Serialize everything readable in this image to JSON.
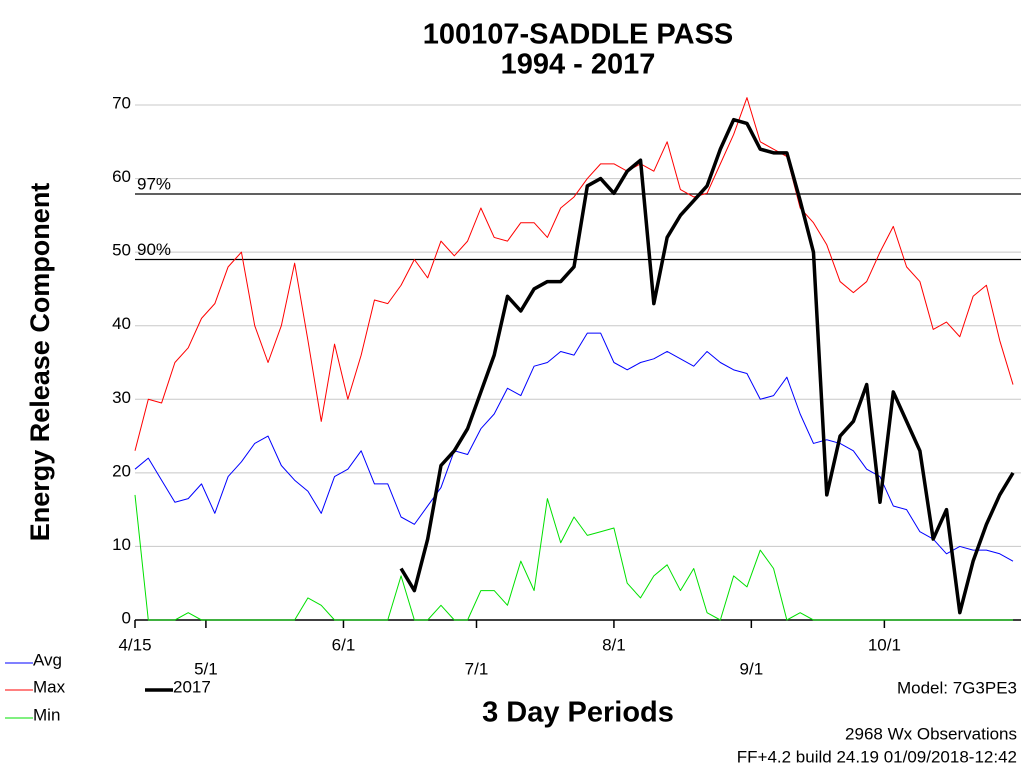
{
  "chart_data": {
    "type": "line",
    "title": "100107-SADDLE PASS",
    "subtitle": "1994 - 2017",
    "y_label": "Energy Release Component",
    "x_label": "3 Day Periods",
    "notes": [
      "Model: 7G3PE3",
      "2968 Wx Observations",
      "FF+4.2 build 24.19 01/09/2018-12:42"
    ],
    "xlim": [
      0,
      66.6
    ],
    "xticks": [
      {
        "value": 0,
        "label": "4/15"
      },
      {
        "value": 5.33,
        "label": "5/1"
      },
      {
        "value": 15.67,
        "label": "6/1"
      },
      {
        "value": 25.67,
        "label": "7/1"
      },
      {
        "value": 36,
        "label": "8/1"
      },
      {
        "value": 46.33,
        "label": "9/1"
      },
      {
        "value": 56.33,
        "label": "10/1"
      }
    ],
    "ylim": [
      0,
      70
    ],
    "yticks": [
      0,
      10,
      20,
      30,
      40,
      50,
      60,
      70
    ],
    "grid": true,
    "reference_lines": [
      {
        "label": "97%",
        "value": 57.9
      },
      {
        "label": "90%",
        "value": 49
      }
    ],
    "series": [
      {
        "name": "Avg",
        "color": "#0000ff",
        "width": 1,
        "values": [
          20.5,
          22,
          19,
          16,
          16.5,
          18.5,
          14.5,
          19.5,
          21.5,
          24,
          25,
          21,
          19,
          17.5,
          14.5,
          19.5,
          20.5,
          23,
          18.5,
          18.5,
          14,
          13,
          15.5,
          18,
          23,
          22.5,
          26,
          28,
          31.5,
          30.5,
          34.5,
          35,
          36.5,
          36,
          39,
          39,
          35,
          34,
          35,
          35.5,
          36.5,
          35.5,
          34.5,
          36.5,
          35,
          34,
          33.5,
          30,
          30.5,
          33,
          28,
          24,
          24.5,
          24,
          23,
          20.5,
          19.5,
          15.5,
          15,
          12,
          11,
          9,
          10,
          9.5,
          9.5,
          9,
          8
        ]
      },
      {
        "name": "Max",
        "color": "#ff0000",
        "width": 1,
        "values": [
          23,
          30,
          29.5,
          35,
          37,
          41,
          43,
          48,
          50,
          40,
          35,
          40,
          48.5,
          38,
          27,
          37.5,
          30,
          36,
          43.5,
          43,
          45.5,
          49,
          46.5,
          51.5,
          49.5,
          51.5,
          56,
          52,
          51.5,
          54,
          54,
          52,
          56,
          57.5,
          60,
          62,
          62,
          61,
          62,
          61,
          65,
          58.5,
          57.5,
          58,
          62,
          66,
          71,
          65,
          64,
          63,
          56,
          54,
          51,
          46,
          44.5,
          46,
          50,
          53.5,
          48,
          46,
          39.5,
          40.5,
          38.5,
          44,
          45.5,
          38,
          32
        ]
      },
      {
        "name": "Min",
        "color": "#00e000",
        "width": 1,
        "values": [
          17,
          0,
          0,
          0,
          1,
          0,
          0,
          0,
          0,
          0,
          0,
          0,
          0,
          3,
          2,
          0,
          0,
          0,
          0,
          0,
          6,
          0,
          0,
          2,
          0,
          0,
          4,
          4,
          2,
          8,
          4,
          16.5,
          10.5,
          14,
          11.5,
          12,
          12.5,
          5,
          3,
          6,
          7.5,
          4,
          7,
          1,
          0,
          6,
          4.5,
          9.5,
          7,
          0,
          1,
          0,
          0,
          0,
          0,
          0,
          0,
          0,
          0,
          0,
          0,
          0,
          0,
          0,
          0,
          0,
          0
        ]
      },
      {
        "name": "2017",
        "color": "#000000",
        "width": 3.5,
        "values": [
          null,
          null,
          null,
          null,
          null,
          null,
          null,
          null,
          null,
          null,
          null,
          null,
          null,
          null,
          null,
          null,
          null,
          null,
          null,
          null,
          7,
          4,
          11,
          21,
          23,
          26,
          31,
          36,
          44,
          42,
          45,
          46,
          46,
          48,
          59,
          60,
          58,
          61,
          62.5,
          43,
          52,
          55,
          57,
          59,
          64,
          68,
          67.5,
          64,
          63.5,
          63.5,
          57,
          50,
          17,
          25,
          27,
          32,
          16,
          31,
          27,
          23,
          11,
          15,
          1,
          8,
          13,
          17,
          20
        ]
      }
    ]
  }
}
